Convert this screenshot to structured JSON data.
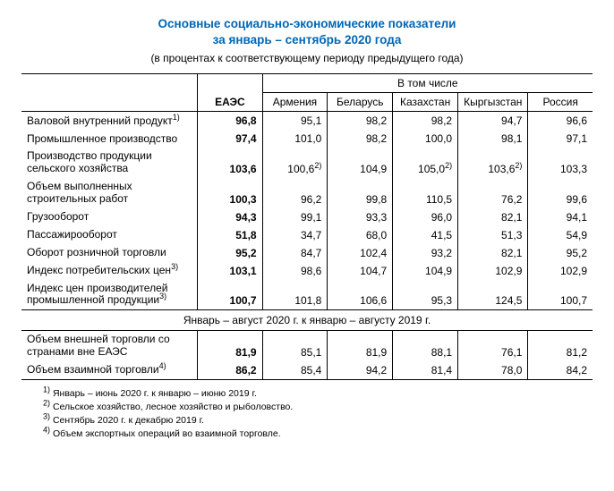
{
  "title_line1": "Основные социально-экономические показатели",
  "title_line2": "за январь – сентябрь 2020 года",
  "subtitle": "(в процентах к соответствующему периоду предыдущего года)",
  "headers": {
    "blank": "",
    "eaec": "ЕАЭС",
    "group": "В том числе",
    "c1": "Армения",
    "c2": "Беларусь",
    "c3": "Казахстан",
    "c4": "Кыргызстан",
    "c5": "Россия"
  },
  "rows": [
    {
      "label": "Валовой внутренний продукт",
      "sup": "1)",
      "eaec": "96,8",
      "v": [
        "95,1",
        "98,2",
        "98,2",
        "94,7",
        "96,6"
      ]
    },
    {
      "label": "Промышленное производство",
      "sup": "",
      "eaec": "97,4",
      "v": [
        "101,0",
        "98,2",
        "100,0",
        "98,1",
        "97,1"
      ]
    },
    {
      "label": "Производство продукции сельского хозяйства",
      "sup": "",
      "eaec": "103,6",
      "v": [
        "100,6<sup>2)</sup>",
        "104,9",
        "105,0<sup>2)</sup>",
        "103,6<sup>2)</sup>",
        "103,3"
      ]
    },
    {
      "label": "Объем выполненных строительных работ",
      "sup": "",
      "eaec": "100,3",
      "v": [
        "96,2",
        "99,8",
        "110,5",
        "76,2",
        "99,6"
      ]
    },
    {
      "label": "Грузооборот",
      "sup": "",
      "eaec": "94,3",
      "v": [
        "99,1",
        "93,3",
        "96,0",
        "82,1",
        "94,1"
      ]
    },
    {
      "label": "Пассажирооборот",
      "sup": "",
      "eaec": "51,8",
      "v": [
        "34,7",
        "68,0",
        "41,5",
        "51,3",
        "54,9"
      ]
    },
    {
      "label": "Оборот розничной торговли",
      "sup": "",
      "eaec": "95,2",
      "v": [
        "84,7",
        "102,4",
        "93,2",
        "82,1",
        "95,2"
      ]
    },
    {
      "label": "Индекс потребительских цен",
      "sup": "3)",
      "eaec": "103,1",
      "v": [
        "98,6",
        "104,7",
        "104,9",
        "102,9",
        "102,9"
      ]
    },
    {
      "label": "Индекс цен производителей промышленной продукции",
      "sup": "3)",
      "eaec": "100,7",
      "v": [
        "101,8",
        "106,6",
        "95,3",
        "124,5",
        "100,7"
      ]
    }
  ],
  "separator": "Январь – август 2020 г. к январю – августу 2019 г.",
  "rows2": [
    {
      "label": "Объем внешней торговли со странами вне ЕАЭС",
      "sup": "",
      "eaec": "81,9",
      "v": [
        "85,1",
        "81,9",
        "88,1",
        "76,1",
        "81,2"
      ]
    },
    {
      "label": "Объем взаимной торговли",
      "sup": "4)",
      "eaec": "86,2",
      "v": [
        "85,4",
        "94,2",
        "81,4",
        "78,0",
        "84,2"
      ]
    }
  ],
  "footnotes": {
    "f1": "Январь – июнь 2020 г. к январю – июню 2019 г.",
    "f2": "Сельское хозяйство, лесное хозяйство и рыболовство.",
    "f3": "Сентябрь 2020 г. к декабрю 2019 г.",
    "f4": "Объем экспортных операций во взаимной торговле."
  }
}
